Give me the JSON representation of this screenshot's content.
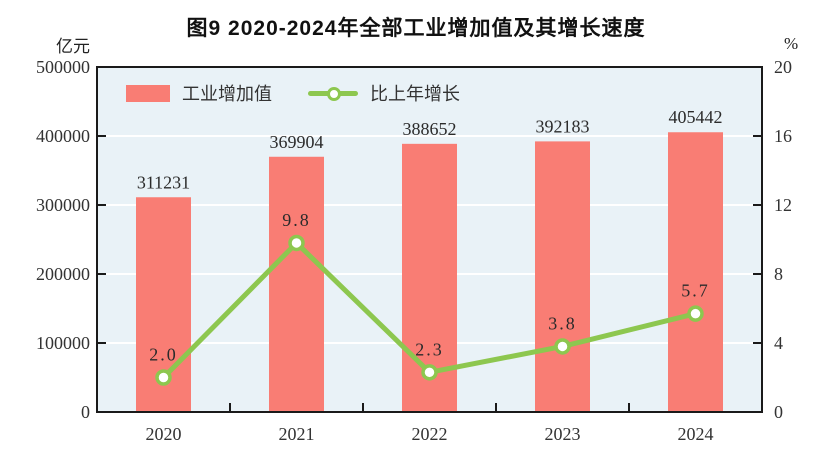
{
  "chart_data": {
    "type": "bar",
    "title": "图9  2020-2024年全部工业增加值及其增长速度",
    "categories": [
      "2020",
      "2021",
      "2022",
      "2023",
      "2024"
    ],
    "series": [
      {
        "name": "工业增加值",
        "kind": "bar",
        "axis": "left",
        "values": [
          311231,
          369904,
          388652,
          392183,
          405442
        ],
        "labels": [
          "311231",
          "369904",
          "388652",
          "392183",
          "405442"
        ],
        "color": "#f97d74"
      },
      {
        "name": "比上年增长",
        "kind": "line",
        "axis": "right",
        "values": [
          2.0,
          9.8,
          2.3,
          3.8,
          5.7
        ],
        "labels": [
          "2.0",
          "9.8",
          "2.3",
          "3.8",
          "5.7"
        ],
        "color": "#8dc74f",
        "marker": "hollow-circle"
      }
    ],
    "left_axis": {
      "unit": "亿元",
      "min": 0,
      "max": 500000,
      "ticks": [
        0,
        100000,
        200000,
        300000,
        400000,
        500000
      ],
      "tick_labels": [
        "0",
        "100000",
        "200000",
        "300000",
        "400000",
        "500000"
      ]
    },
    "right_axis": {
      "unit": "%",
      "min": 0,
      "max": 20,
      "ticks": [
        0,
        4,
        8,
        12,
        16,
        20
      ],
      "tick_labels": [
        "0",
        "4",
        "8",
        "12",
        "16",
        "20"
      ]
    },
    "legend_position": "top-left-inside",
    "grid": "horizontal-white",
    "colors": {
      "plot_background": "#e9f2f7",
      "grid_line": "#ffffff",
      "axis_line": "#1a1a1a",
      "text": "#333333"
    }
  }
}
